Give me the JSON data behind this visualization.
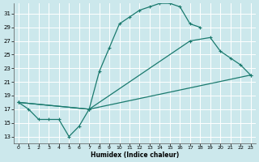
{
  "xlabel": "Humidex (Indice chaleur)",
  "bg_color": "#cce8ec",
  "grid_color": "#ffffff",
  "line_color": "#1a7a6e",
  "xlim": [
    -0.5,
    23.5
  ],
  "ylim": [
    12,
    32.5
  ],
  "xticks": [
    0,
    1,
    2,
    3,
    4,
    5,
    6,
    7,
    8,
    9,
    10,
    11,
    12,
    13,
    14,
    15,
    16,
    17,
    18,
    19,
    20,
    21,
    22,
    23
  ],
  "yticks": [
    13,
    15,
    17,
    19,
    21,
    23,
    25,
    27,
    29,
    31
  ],
  "curve1_x": [
    0,
    1,
    2,
    3,
    4,
    5,
    6,
    7,
    8,
    9,
    10,
    11,
    12,
    13,
    14,
    15,
    16,
    17,
    18
  ],
  "curve1_y": [
    18,
    17,
    15.5,
    15.5,
    15.5,
    13,
    14.5,
    17,
    22.5,
    26,
    29.5,
    30.5,
    31.5,
    32,
    32.5,
    32.5,
    32,
    29.5,
    29
  ],
  "curve2_x": [
    0,
    7,
    17,
    19,
    20,
    21,
    22,
    23
  ],
  "curve2_y": [
    18,
    17,
    27,
    27.5,
    25.5,
    24.5,
    23.5,
    22
  ],
  "curve3_x": [
    0,
    7,
    23
  ],
  "curve3_y": [
    18,
    17,
    22
  ]
}
